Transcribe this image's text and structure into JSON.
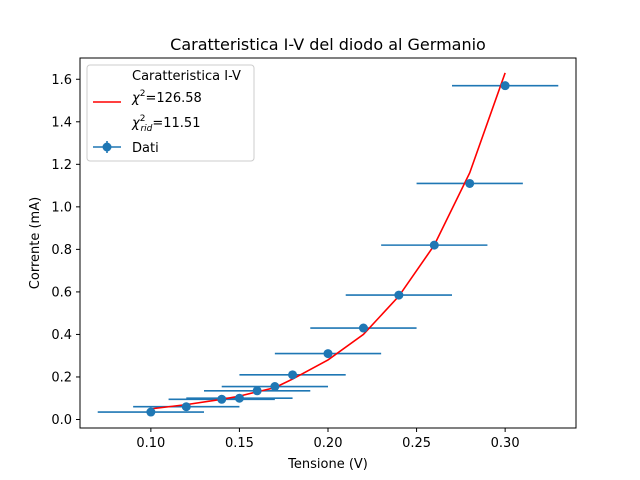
{
  "chart_data": {
    "type": "scatter",
    "title": "Caratteristica I-V del diodo al Germanio",
    "xlabel": "Tensione (V)",
    "ylabel": "Corrente (mA)",
    "xlim": [
      0.06,
      0.34
    ],
    "ylim": [
      -0.04,
      1.7
    ],
    "xticks": [
      0.1,
      0.15,
      0.2,
      0.25,
      0.3
    ],
    "xtick_labels": [
      "0.10",
      "0.15",
      "0.20",
      "0.25",
      "0.30"
    ],
    "yticks": [
      0.0,
      0.2,
      0.4,
      0.6,
      0.8,
      1.0,
      1.2,
      1.4,
      1.6
    ],
    "ytick_labels": [
      "0.0",
      "0.2",
      "0.4",
      "0.6",
      "0.8",
      "1.0",
      "1.2",
      "1.4",
      "1.6"
    ],
    "grid": false,
    "legend_position": "top-left",
    "legend": {
      "fit_title": "Caratteristica I-V",
      "chi2_symbol": "χ",
      "chi2_sup": "2",
      "chi2_value": "=126.58",
      "chi2rid_symbol": "χ",
      "chi2rid_sup": "2",
      "chi2rid_sub": "rid",
      "chi2rid_value": "=11.51",
      "data_label": "Dati"
    },
    "series": [
      {
        "name": "Dati",
        "kind": "errorbar",
        "color": "#1f77b4",
        "x": [
          0.1,
          0.12,
          0.14,
          0.15,
          0.16,
          0.17,
          0.18,
          0.2,
          0.22,
          0.24,
          0.26,
          0.28,
          0.3
        ],
        "y": [
          0.035,
          0.06,
          0.095,
          0.1,
          0.135,
          0.155,
          0.21,
          0.31,
          0.43,
          0.585,
          0.82,
          1.11,
          1.57
        ],
        "xerr": [
          0.03,
          0.03,
          0.03,
          0.03,
          0.03,
          0.03,
          0.03,
          0.03,
          0.03,
          0.03,
          0.03,
          0.03,
          0.03
        ]
      },
      {
        "name": "Caratteristica I-V",
        "kind": "line",
        "color": "#ff0000",
        "x": [
          0.1,
          0.12,
          0.14,
          0.15,
          0.16,
          0.17,
          0.18,
          0.2,
          0.22,
          0.24,
          0.26,
          0.28,
          0.3
        ],
        "y": [
          0.05,
          0.07,
          0.095,
          0.11,
          0.13,
          0.15,
          0.19,
          0.28,
          0.4,
          0.58,
          0.82,
          1.16,
          1.63
        ]
      }
    ]
  }
}
